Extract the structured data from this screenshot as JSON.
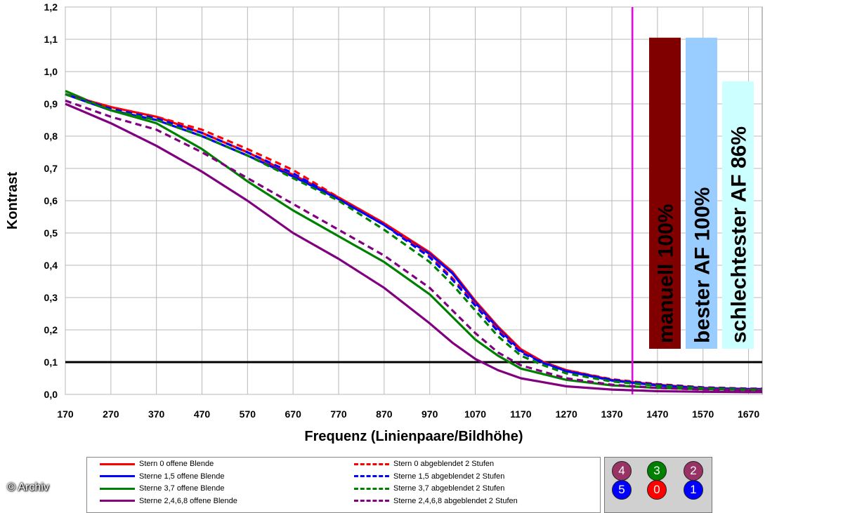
{
  "chart_data": {
    "type": "line",
    "xlabel": "Frequenz (Linienpaare/Bildhöhe)",
    "ylabel": "Kontrast",
    "xlim": [
      170,
      1700
    ],
    "ylim": [
      0,
      1.2
    ],
    "x_ticks": [
      170,
      270,
      370,
      470,
      570,
      670,
      770,
      870,
      970,
      1070,
      1170,
      1270,
      1370,
      1470,
      1570,
      1670
    ],
    "y_ticks": [
      "0,0",
      "0,1",
      "0,2",
      "0,3",
      "0,4",
      "0,5",
      "0,6",
      "0,7",
      "0,8",
      "0,9",
      "1,0",
      "1,1",
      "1,2"
    ],
    "grid": true,
    "reference_line_y": 0.1,
    "vertical_marker_x": 1415,
    "series": [
      {
        "name": "Stern 0 offene Blende",
        "color": "#ff0000",
        "style": "solid",
        "points": [
          [
            170,
            0.93
          ],
          [
            270,
            0.89
          ],
          [
            370,
            0.86
          ],
          [
            470,
            0.81
          ],
          [
            570,
            0.75
          ],
          [
            670,
            0.68
          ],
          [
            770,
            0.61
          ],
          [
            870,
            0.53
          ],
          [
            970,
            0.44
          ],
          [
            1020,
            0.38
          ],
          [
            1070,
            0.29
          ],
          [
            1120,
            0.21
          ],
          [
            1170,
            0.14
          ],
          [
            1220,
            0.1
          ],
          [
            1270,
            0.075
          ],
          [
            1370,
            0.045
          ],
          [
            1470,
            0.03
          ],
          [
            1570,
            0.02
          ],
          [
            1670,
            0.017
          ],
          [
            1700,
            0.017
          ]
        ]
      },
      {
        "name": "Sterne 1,5 offene Blende",
        "color": "#0000ff",
        "style": "solid",
        "points": [
          [
            170,
            0.93
          ],
          [
            270,
            0.88
          ],
          [
            370,
            0.85
          ],
          [
            470,
            0.8
          ],
          [
            570,
            0.74
          ],
          [
            670,
            0.675
          ],
          [
            770,
            0.605
          ],
          [
            870,
            0.525
          ],
          [
            970,
            0.435
          ],
          [
            1020,
            0.375
          ],
          [
            1070,
            0.285
          ],
          [
            1120,
            0.205
          ],
          [
            1170,
            0.135
          ],
          [
            1220,
            0.098
          ],
          [
            1270,
            0.072
          ],
          [
            1370,
            0.043
          ],
          [
            1470,
            0.028
          ],
          [
            1570,
            0.019
          ],
          [
            1670,
            0.016
          ],
          [
            1700,
            0.016
          ]
        ]
      },
      {
        "name": "Sterne 3,7 offene Blende",
        "color": "#008000",
        "style": "solid",
        "points": [
          [
            170,
            0.94
          ],
          [
            270,
            0.88
          ],
          [
            370,
            0.84
          ],
          [
            470,
            0.76
          ],
          [
            570,
            0.66
          ],
          [
            670,
            0.57
          ],
          [
            770,
            0.49
          ],
          [
            870,
            0.41
          ],
          [
            970,
            0.31
          ],
          [
            1020,
            0.24
          ],
          [
            1070,
            0.17
          ],
          [
            1120,
            0.12
          ],
          [
            1170,
            0.08
          ],
          [
            1270,
            0.045
          ],
          [
            1370,
            0.028
          ],
          [
            1470,
            0.02
          ],
          [
            1570,
            0.016
          ],
          [
            1670,
            0.014
          ],
          [
            1700,
            0.014
          ]
        ]
      },
      {
        "name": "Sterne 2,4,6,8 offene Blende",
        "color": "#800080",
        "style": "solid",
        "points": [
          [
            170,
            0.9
          ],
          [
            270,
            0.84
          ],
          [
            370,
            0.77
          ],
          [
            470,
            0.69
          ],
          [
            570,
            0.6
          ],
          [
            670,
            0.5
          ],
          [
            770,
            0.42
          ],
          [
            870,
            0.33
          ],
          [
            970,
            0.22
          ],
          [
            1020,
            0.16
          ],
          [
            1070,
            0.11
          ],
          [
            1120,
            0.075
          ],
          [
            1170,
            0.05
          ],
          [
            1270,
            0.025
          ],
          [
            1370,
            0.015
          ],
          [
            1470,
            0.01
          ],
          [
            1570,
            0.008
          ],
          [
            1670,
            0.007
          ],
          [
            1700,
            0.007
          ]
        ]
      },
      {
        "name": "Stern 0 abgeblendet 2 Stufen",
        "color": "#ff0000",
        "style": "dashed",
        "points": [
          [
            170,
            0.93
          ],
          [
            270,
            0.89
          ],
          [
            370,
            0.86
          ],
          [
            470,
            0.82
          ],
          [
            570,
            0.76
          ],
          [
            670,
            0.695
          ],
          [
            770,
            0.61
          ],
          [
            870,
            0.53
          ],
          [
            970,
            0.43
          ],
          [
            1020,
            0.36
          ],
          [
            1070,
            0.28
          ],
          [
            1120,
            0.2
          ],
          [
            1170,
            0.135
          ],
          [
            1220,
            0.1
          ],
          [
            1270,
            0.075
          ],
          [
            1370,
            0.047
          ],
          [
            1470,
            0.032
          ],
          [
            1570,
            0.022
          ],
          [
            1670,
            0.018
          ],
          [
            1700,
            0.018
          ]
        ]
      },
      {
        "name": "Sterne 1,5 abgeblendet 2 Stufen",
        "color": "#0000ff",
        "style": "dashed",
        "points": [
          [
            170,
            0.93
          ],
          [
            270,
            0.885
          ],
          [
            370,
            0.855
          ],
          [
            470,
            0.81
          ],
          [
            570,
            0.75
          ],
          [
            670,
            0.685
          ],
          [
            770,
            0.605
          ],
          [
            870,
            0.525
          ],
          [
            970,
            0.425
          ],
          [
            1020,
            0.355
          ],
          [
            1070,
            0.275
          ],
          [
            1120,
            0.195
          ],
          [
            1170,
            0.13
          ],
          [
            1220,
            0.097
          ],
          [
            1270,
            0.072
          ],
          [
            1370,
            0.045
          ],
          [
            1470,
            0.03
          ],
          [
            1570,
            0.021
          ],
          [
            1670,
            0.017
          ],
          [
            1700,
            0.017
          ]
        ]
      },
      {
        "name": "Sterne 3,7 abgeblendet 2 Stufen",
        "color": "#008000",
        "style": "dashed",
        "points": [
          [
            170,
            0.93
          ],
          [
            270,
            0.88
          ],
          [
            370,
            0.85
          ],
          [
            470,
            0.8
          ],
          [
            570,
            0.74
          ],
          [
            670,
            0.67
          ],
          [
            770,
            0.6
          ],
          [
            870,
            0.51
          ],
          [
            970,
            0.41
          ],
          [
            1020,
            0.34
          ],
          [
            1070,
            0.26
          ],
          [
            1120,
            0.18
          ],
          [
            1170,
            0.12
          ],
          [
            1220,
            0.09
          ],
          [
            1270,
            0.065
          ],
          [
            1370,
            0.04
          ],
          [
            1470,
            0.027
          ],
          [
            1570,
            0.019
          ],
          [
            1670,
            0.015
          ],
          [
            1700,
            0.015
          ]
        ]
      },
      {
        "name": "Sterne 2,4,6,8 abgeblendet 2 Stufen",
        "color": "#800080",
        "style": "dashed",
        "points": [
          [
            170,
            0.91
          ],
          [
            270,
            0.86
          ],
          [
            370,
            0.82
          ],
          [
            470,
            0.75
          ],
          [
            570,
            0.67
          ],
          [
            670,
            0.59
          ],
          [
            770,
            0.51
          ],
          [
            870,
            0.43
          ],
          [
            970,
            0.33
          ],
          [
            1020,
            0.26
          ],
          [
            1070,
            0.19
          ],
          [
            1120,
            0.13
          ],
          [
            1170,
            0.09
          ],
          [
            1270,
            0.05
          ],
          [
            1370,
            0.03
          ],
          [
            1470,
            0.02
          ],
          [
            1570,
            0.015
          ],
          [
            1670,
            0.012
          ],
          [
            1700,
            0.012
          ]
        ]
      }
    ],
    "bars": [
      {
        "label": "manuell 100%",
        "color": "#800000",
        "value": 1.105
      },
      {
        "label": "bester AF 100%",
        "color": "#99ccff",
        "value": 1.105
      },
      {
        "label": "schlechtester AF 86%",
        "color": "#ccffff",
        "value": 0.97
      }
    ]
  },
  "legend": {
    "items": [
      "Stern 0 offene Blende",
      "Sterne 1,5 offene Blende",
      "Sterne 3,7 offene Blende",
      "Sterne 2,4,6,8 offene Blende",
      "Stern 0 abgeblendet 2 Stufen",
      "Sterne 1,5 abgeblendet 2 Stufen",
      "Sterne 3,7 abgeblendet 2 Stufen",
      "Sterne 2,4,6,8 abgeblendet 2 Stufen"
    ],
    "colors": [
      "#ff0000",
      "#0000ff",
      "#008000",
      "#800080"
    ]
  },
  "star_grid": {
    "stars": [
      {
        "label": "4",
        "color": "#993366"
      },
      {
        "label": "3",
        "color": "#008000"
      },
      {
        "label": "2",
        "color": "#993366"
      },
      {
        "label": "5",
        "color": "#0000ff"
      },
      {
        "label": "0",
        "color": "#ff0000"
      },
      {
        "label": "1",
        "color": "#0000ff"
      }
    ]
  },
  "credit": "© Archiv"
}
